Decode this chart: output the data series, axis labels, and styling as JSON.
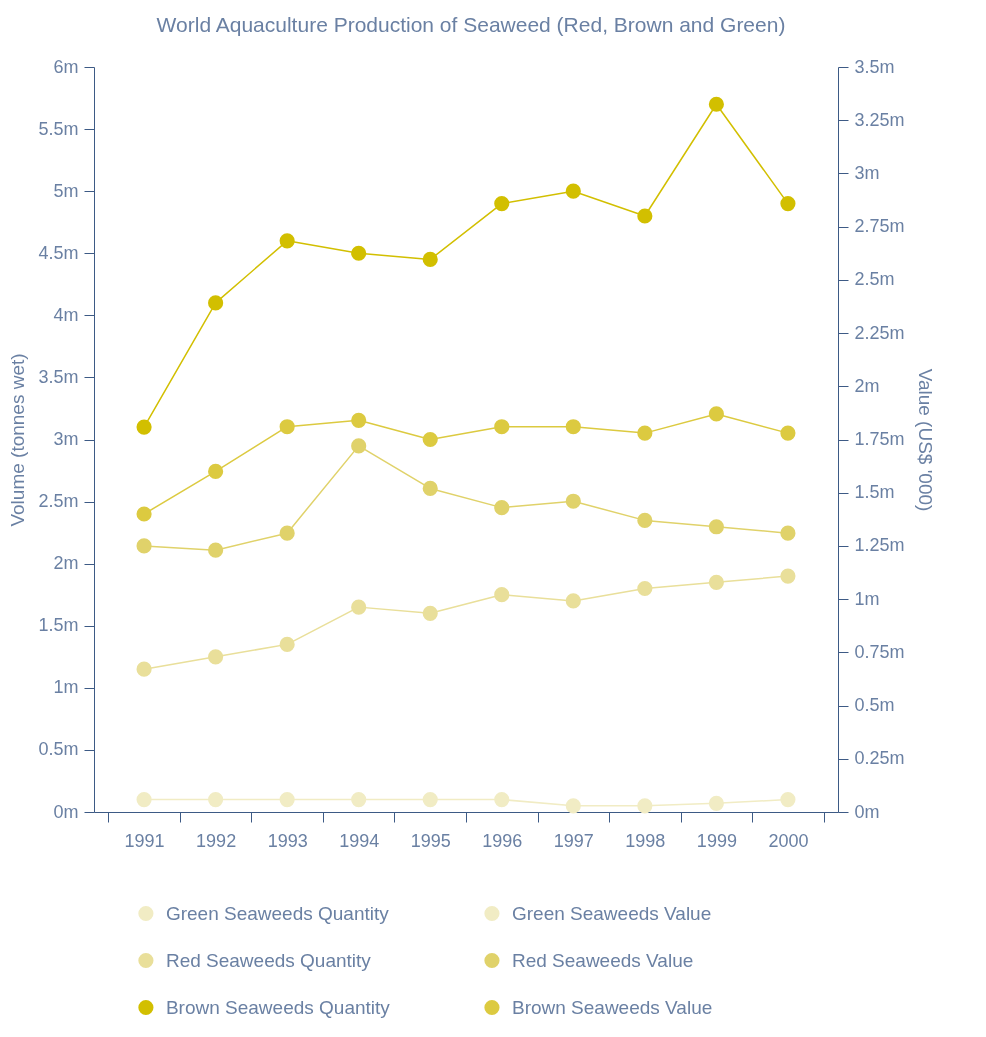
{
  "chart_data": {
    "type": "line",
    "title": "World Aquaculture Production of Seaweed (Red, Brown and Green)",
    "xlabel": null,
    "ylabel": "Volume (tonnes wet)",
    "y2label": "Value (US$ '000)",
    "categories": [
      "1991",
      "1992",
      "1993",
      "1994",
      "1995",
      "1996",
      "1997",
      "1998",
      "1999",
      "2000"
    ],
    "ylim": [
      0,
      6
    ],
    "yticks": [
      {
        "value": 0,
        "label": "0m"
      },
      {
        "value": 0.5,
        "label": "0.5m"
      },
      {
        "value": 1,
        "label": "1m"
      },
      {
        "value": 1.5,
        "label": "1.5m"
      },
      {
        "value": 2,
        "label": "2m"
      },
      {
        "value": 2.5,
        "label": "2.5m"
      },
      {
        "value": 3,
        "label": "3m"
      },
      {
        "value": 3.5,
        "label": "3.5m"
      },
      {
        "value": 4,
        "label": "4m"
      },
      {
        "value": 4.5,
        "label": "4.5m"
      },
      {
        "value": 5,
        "label": "5m"
      },
      {
        "value": 5.5,
        "label": "5.5m"
      },
      {
        "value": 6,
        "label": "6m"
      }
    ],
    "y2lim": [
      0,
      3.5
    ],
    "y2ticks": [
      {
        "value": 0,
        "label": "0m"
      },
      {
        "value": 0.25,
        "label": "0.25m"
      },
      {
        "value": 0.5,
        "label": "0.5m"
      },
      {
        "value": 0.75,
        "label": "0.75m"
      },
      {
        "value": 1,
        "label": "1m"
      },
      {
        "value": 1.25,
        "label": "1.25m"
      },
      {
        "value": 1.5,
        "label": "1.5m"
      },
      {
        "value": 1.75,
        "label": "1.75m"
      },
      {
        "value": 2,
        "label": "2m"
      },
      {
        "value": 2.25,
        "label": "2.25m"
      },
      {
        "value": 2.5,
        "label": "2.5m"
      },
      {
        "value": 2.75,
        "label": "2.75m"
      },
      {
        "value": 3,
        "label": "3m"
      },
      {
        "value": 3.25,
        "label": "3.25m"
      },
      {
        "value": 3.5,
        "label": "3.5m"
      }
    ],
    "series": [
      {
        "name": "Green Seaweeds Quantity",
        "color": "#f1ecc4",
        "values": [
          0.1,
          0.1,
          0.1,
          0.1,
          0.1,
          0.1,
          0.05,
          0.05,
          0.07,
          0.1
        ]
      },
      {
        "name": "Green Seaweeds Value",
        "color": "#f1ecc4",
        "axis": "y2",
        "values": [
          null,
          null,
          null,
          null,
          null,
          null,
          null,
          null,
          null,
          null
        ]
      },
      {
        "name": "Red Seaweeds Quantity",
        "color": "#e9df9a",
        "values": [
          1.15,
          1.25,
          1.35,
          1.65,
          1.6,
          1.75,
          1.7,
          1.8,
          1.85,
          1.9
        ]
      },
      {
        "name": "Red Seaweeds Value",
        "color": "#e0d26a",
        "axis": "y2",
        "values": [
          1.25,
          1.23,
          1.31,
          1.72,
          1.52,
          1.43,
          1.46,
          1.37,
          1.34,
          1.31
        ]
      },
      {
        "name": "Brown Seaweeds Quantity",
        "color": "#d2bf00",
        "values": [
          3.1,
          4.1,
          4.6,
          4.5,
          4.45,
          4.9,
          5.0,
          4.8,
          5.7,
          4.9
        ]
      },
      {
        "name": "Brown Seaweeds Value",
        "color": "#dcca40",
        "axis": "y2",
        "values": [
          1.4,
          1.6,
          1.81,
          1.84,
          1.75,
          1.81,
          1.81,
          1.78,
          1.87,
          1.78
        ]
      }
    ],
    "legend": "bottom",
    "marker": "circle",
    "line_style": "solid",
    "grid": false
  }
}
